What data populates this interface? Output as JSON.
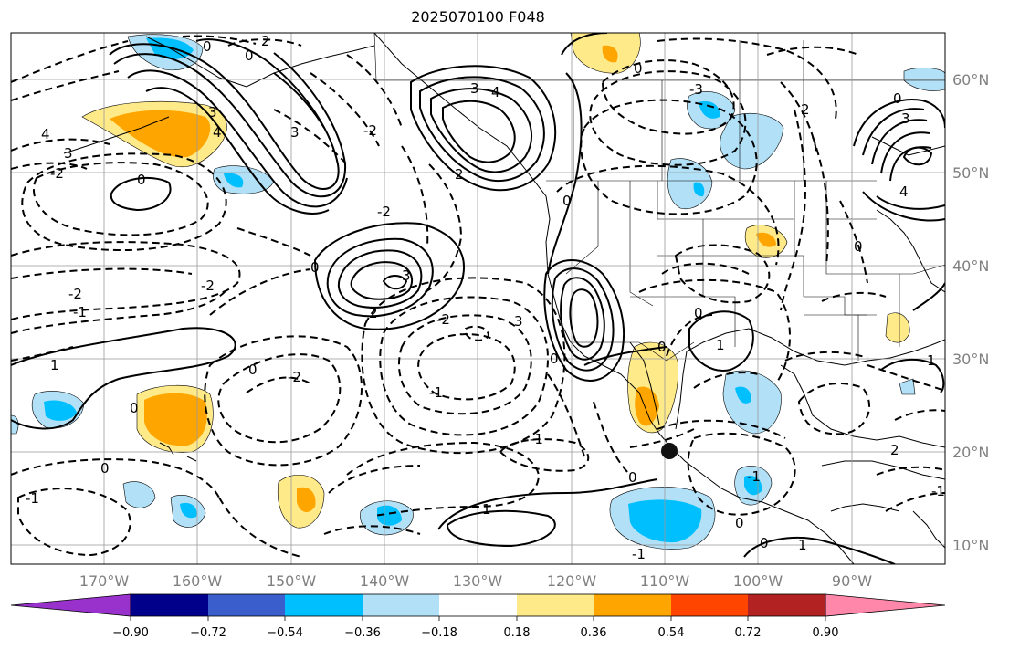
{
  "title": "2025070100 F048",
  "map": {
    "lon_range": [
      -180,
      -80
    ],
    "lat_range": [
      8,
      65
    ],
    "lat_ticks": [
      {
        "value": 60,
        "label": "60°N"
      },
      {
        "value": 50,
        "label": "50°N"
      },
      {
        "value": 40,
        "label": "40°N"
      },
      {
        "value": 30,
        "label": "30°N"
      },
      {
        "value": 20,
        "label": "20°N"
      },
      {
        "value": 10,
        "label": "10°N"
      }
    ],
    "lon_ticks": [
      {
        "value": -170,
        "label": "170°W"
      },
      {
        "value": -160,
        "label": "160°W"
      },
      {
        "value": -150,
        "label": "150°W"
      },
      {
        "value": -140,
        "label": "140°W"
      },
      {
        "value": -130,
        "label": "130°W"
      },
      {
        "value": -120,
        "label": "120°W"
      },
      {
        "value": -110,
        "label": "110°W"
      },
      {
        "value": -100,
        "label": "100°W"
      },
      {
        "value": -90,
        "label": "90°W"
      }
    ],
    "grid": true,
    "marker": {
      "lon": -109.5,
      "lat": 20,
      "name": "storm-center"
    },
    "contour_labels": [
      "0",
      "2",
      "3",
      "4",
      "-2",
      "-1",
      "1",
      "-3"
    ]
  },
  "colorbar": {
    "colors": [
      "#9932CC",
      "#00008B",
      "#3A5FCD",
      "#00BFFF",
      "#B2E0F7",
      "#FFFFFF",
      "#FFEA8A",
      "#FFA500",
      "#FF4500",
      "#B22222",
      "#FF88AA"
    ],
    "tick_labels": [
      "−0.90",
      "−0.72",
      "−0.54",
      "−0.36",
      "−0.18",
      "0.18",
      "0.36",
      "0.54",
      "0.72",
      "0.90"
    ],
    "extend": "both"
  }
}
